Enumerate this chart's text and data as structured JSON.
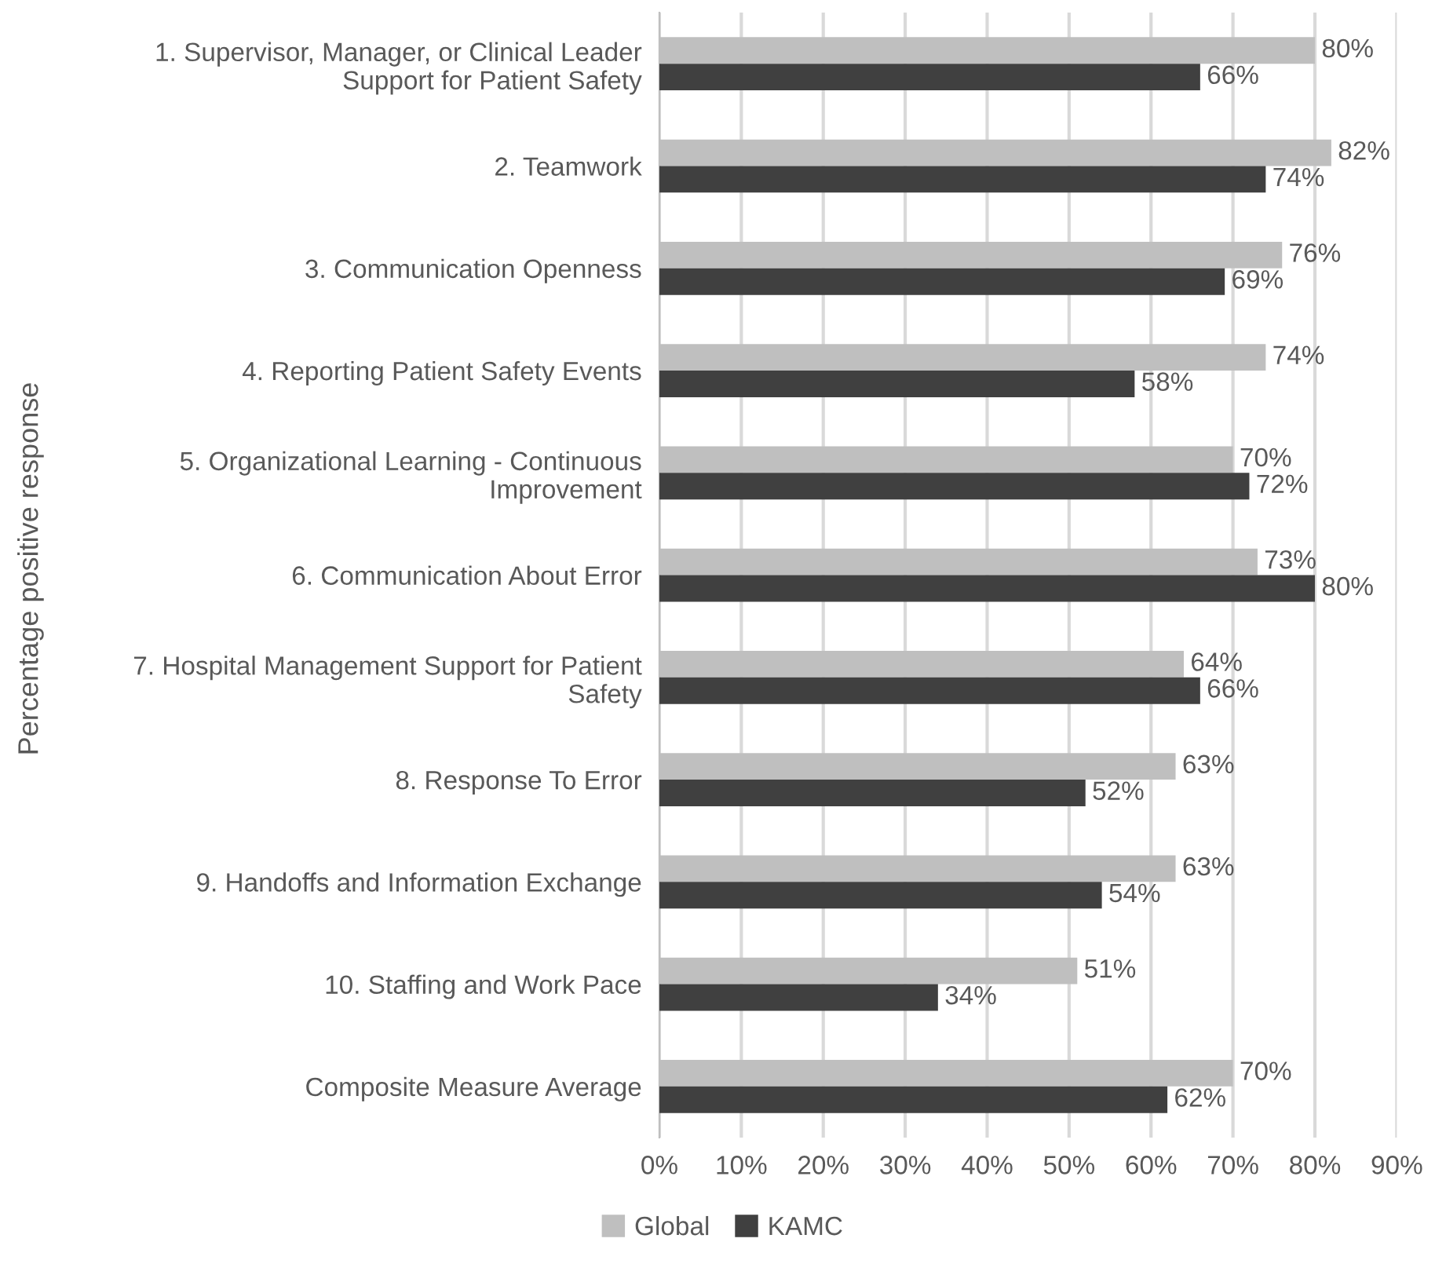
{
  "chart_data": {
    "type": "bar",
    "orientation": "horizontal",
    "ylabel": "Percentage positive response",
    "categories": [
      "1. Supervisor, Manager, or Clinical Leader\nSupport for Patient Safety",
      "2. Teamwork",
      "3. Communication Openness",
      "4. Reporting Patient Safety Events",
      "5. Organizational Learning - Continuous\nImprovement",
      "6. Communication About Error",
      "7. Hospital Management Support for Patient\nSafety",
      "8. Response To Error",
      "9. Handoffs and Information Exchange",
      "10. Staffing and Work Pace",
      "Composite Measure Average"
    ],
    "series": [
      {
        "name": "Global",
        "color": "#bfbfbf",
        "values": [
          80,
          82,
          76,
          74,
          70,
          73,
          64,
          63,
          63,
          51,
          70
        ],
        "value_labels": [
          "80%",
          "82%",
          "76%",
          "74%",
          "70%",
          "73%",
          "64%",
          "63%",
          "63%",
          "51%",
          "70%"
        ]
      },
      {
        "name": "KAMC",
        "color": "#404040",
        "values": [
          66,
          74,
          69,
          58,
          72,
          80,
          66,
          52,
          54,
          34,
          62
        ],
        "value_labels": [
          "66%",
          "74%",
          "69%",
          "58%",
          "72%",
          "80%",
          "66%",
          "52%",
          "54%",
          "34%",
          "62%"
        ]
      }
    ],
    "xlim": [
      0,
      90
    ],
    "xticks": [
      {
        "value": 0,
        "label": "0%"
      },
      {
        "value": 10,
        "label": "10%"
      },
      {
        "value": 20,
        "label": "20%"
      },
      {
        "value": 30,
        "label": "30%"
      },
      {
        "value": 40,
        "label": "40%"
      },
      {
        "value": 50,
        "label": "50%"
      },
      {
        "value": 60,
        "label": "60%"
      },
      {
        "value": 70,
        "label": "70%"
      },
      {
        "value": 80,
        "label": "80%"
      },
      {
        "value": 90,
        "label": "90%"
      }
    ],
    "grid": "x",
    "legend": "bottom"
  }
}
